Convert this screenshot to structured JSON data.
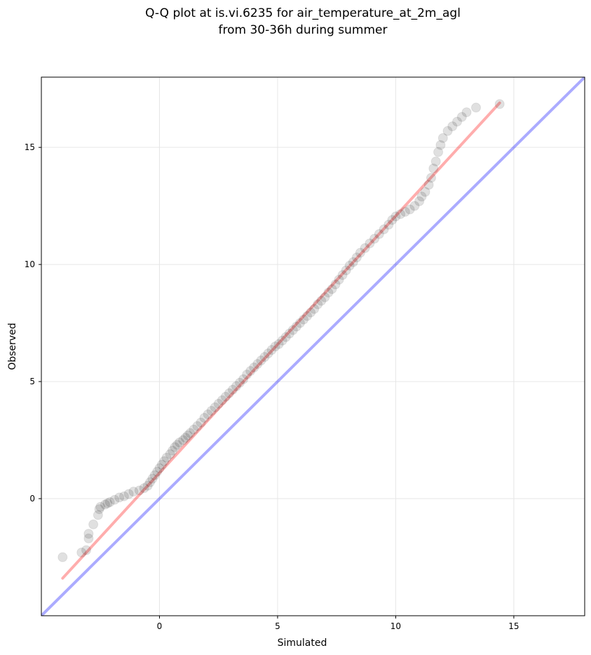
{
  "chart_data": {
    "type": "scatter",
    "title_lines": [
      "Q-Q plot at is.vi.6235 for air_temperature_at_2m_agl",
      "from 30-36h during summer"
    ],
    "xlabel": "Simulated",
    "ylabel": "Observed",
    "xlim": [
      -5,
      18
    ],
    "ylim": [
      -5,
      18
    ],
    "x_ticks": [
      0,
      5,
      10,
      15
    ],
    "y_ticks": [
      0,
      5,
      10,
      15
    ],
    "grid": true,
    "colors": {
      "points": "#000000",
      "fit_line": "#ff0000",
      "identity_line": "#0000ff",
      "grid": "#e6e6e6"
    },
    "fit_line": {
      "x": [
        -4.1,
        14.4
      ],
      "y": [
        -3.4,
        16.9
      ]
    },
    "identity_line": {
      "x": [
        -5,
        18
      ],
      "y": [
        -5,
        18
      ]
    },
    "series": [
      {
        "x": [
          -4.1,
          -3.3,
          -3.1,
          -3.0,
          -3.0,
          -2.8,
          -2.6,
          -2.55,
          -2.5,
          -2.3,
          -2.2,
          -2.1,
          -1.9,
          -1.7,
          -1.5,
          -1.3,
          -1.1,
          -0.85,
          -0.65,
          -0.5,
          -0.4,
          -0.3,
          -0.2,
          -0.1,
          0.0,
          0.1,
          0.2,
          0.3,
          0.45,
          0.55,
          0.65,
          0.75,
          0.85,
          1.0,
          1.1,
          1.2,
          1.3,
          1.45,
          1.6,
          1.75,
          1.9,
          2.05,
          2.2,
          2.35,
          2.5,
          2.65,
          2.8,
          2.95,
          3.1,
          3.25,
          3.4,
          3.55,
          3.7,
          3.85,
          4.0,
          4.15,
          4.3,
          4.45,
          4.6,
          4.75,
          4.9,
          5.05,
          5.2,
          5.35,
          5.5,
          5.65,
          5.8,
          5.95,
          6.1,
          6.25,
          6.4,
          6.55,
          6.7,
          6.85,
          7.0,
          7.15,
          7.3,
          7.45,
          7.6,
          7.75,
          7.9,
          8.05,
          8.2,
          8.35,
          8.5,
          8.7,
          8.9,
          9.1,
          9.3,
          9.5,
          9.7,
          9.85,
          10.0,
          10.2,
          10.4,
          10.6,
          10.8,
          11.0,
          11.1,
          11.25,
          11.4,
          11.5,
          11.6,
          11.7,
          11.8,
          11.9,
          12.0,
          12.2,
          12.4,
          12.6,
          12.8,
          13.0,
          13.4,
          14.4
        ],
        "y": [
          -2.5,
          -2.3,
          -2.2,
          -1.7,
          -1.5,
          -1.1,
          -0.7,
          -0.45,
          -0.35,
          -0.25,
          -0.2,
          -0.15,
          -0.05,
          0.05,
          0.1,
          0.2,
          0.3,
          0.35,
          0.45,
          0.55,
          0.7,
          0.85,
          1.0,
          1.15,
          1.3,
          1.45,
          1.6,
          1.75,
          1.9,
          2.05,
          2.2,
          2.3,
          2.4,
          2.5,
          2.6,
          2.7,
          2.8,
          2.95,
          3.1,
          3.25,
          3.45,
          3.6,
          3.75,
          3.9,
          4.05,
          4.2,
          4.35,
          4.5,
          4.65,
          4.8,
          4.95,
          5.1,
          5.3,
          5.45,
          5.6,
          5.75,
          5.9,
          6.05,
          6.2,
          6.35,
          6.5,
          6.6,
          6.75,
          6.9,
          7.05,
          7.2,
          7.35,
          7.5,
          7.65,
          7.8,
          7.95,
          8.1,
          8.3,
          8.45,
          8.6,
          8.8,
          8.95,
          9.15,
          9.35,
          9.55,
          9.75,
          9.95,
          10.1,
          10.3,
          10.5,
          10.7,
          10.9,
          11.1,
          11.3,
          11.5,
          11.7,
          11.9,
          12.05,
          12.15,
          12.25,
          12.35,
          12.5,
          12.7,
          12.9,
          13.1,
          13.4,
          13.7,
          14.1,
          14.4,
          14.8,
          15.1,
          15.4,
          15.7,
          15.9,
          16.1,
          16.3,
          16.5,
          16.7,
          16.85
        ]
      }
    ]
  }
}
